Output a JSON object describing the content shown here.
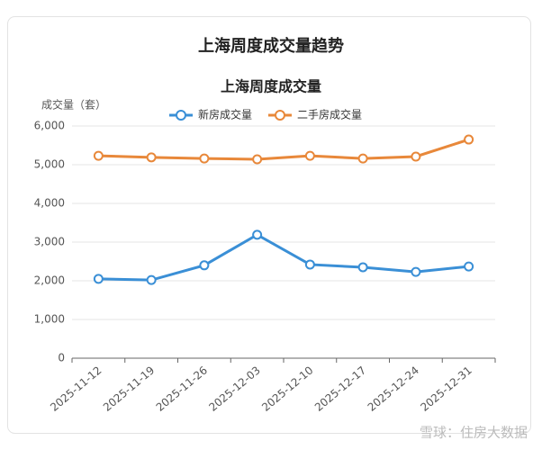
{
  "chart_data": {
    "type": "line",
    "title": "上海周度成交量趋势",
    "subtitle": "上海周度成交量",
    "y_label": "成交量（套）",
    "categories": [
      "2025-11-12",
      "2025-11-19",
      "2025-11-26",
      "2025-12-03",
      "2025-12-10",
      "2025-12-17",
      "2025-12-24",
      "2025-12-31"
    ],
    "series": [
      {
        "name": "新房成交量",
        "color": "#3a8fd6",
        "values": [
          2050,
          2020,
          2400,
          3190,
          2420,
          2350,
          2230,
          2370
        ]
      },
      {
        "name": "二手房成交量",
        "color": "#e8883a",
        "values": [
          5230,
          5190,
          5160,
          5140,
          5230,
          5160,
          5210,
          5650
        ]
      }
    ],
    "ylim": [
      0,
      6000
    ],
    "yticks": [
      0,
      {
        "value": 1000,
        "label": "1,000"
      },
      {
        "value": 2000,
        "label": "2,000"
      },
      {
        "value": 3000,
        "label": "3,000"
      },
      {
        "value": 4000,
        "label": "4,000"
      },
      {
        "value": 5000,
        "label": "5,000"
      },
      {
        "value": 6000,
        "label": "6,000"
      }
    ],
    "grid": true
  },
  "watermark": "雪球：住房大数据"
}
